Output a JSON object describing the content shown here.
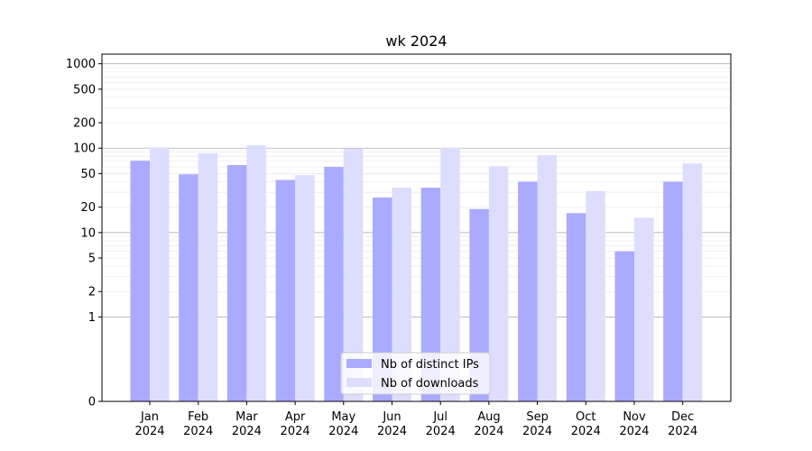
{
  "chart_data": {
    "type": "bar",
    "title": "wk 2024",
    "xlabel": "",
    "ylabel": "",
    "yscale": "symlog",
    "ylim": [
      0,
      1300
    ],
    "y_ticks": [
      0,
      1,
      2,
      5,
      10,
      20,
      50,
      100,
      200,
      500,
      1000
    ],
    "grid": true,
    "legend_position": "lower center",
    "categories": [
      "Jan\n2024",
      "Feb\n2024",
      "Mar\n2024",
      "Apr\n2024",
      "May\n2024",
      "Jun\n2024",
      "Jul\n2024",
      "Aug\n2024",
      "Sep\n2024",
      "Oct\n2024",
      "Nov\n2024",
      "Dec\n2024"
    ],
    "series": [
      {
        "name": "Nb of distinct IPs",
        "color": "#aaaaff",
        "values": [
          71,
          49,
          63,
          42,
          60,
          26,
          34,
          19,
          40,
          17,
          6,
          40
        ]
      },
      {
        "name": "Nb of downloads",
        "color": "#ddddff",
        "values": [
          102,
          87,
          108,
          48,
          99,
          34,
          101,
          61,
          83,
          31,
          15,
          66
        ]
      }
    ]
  }
}
